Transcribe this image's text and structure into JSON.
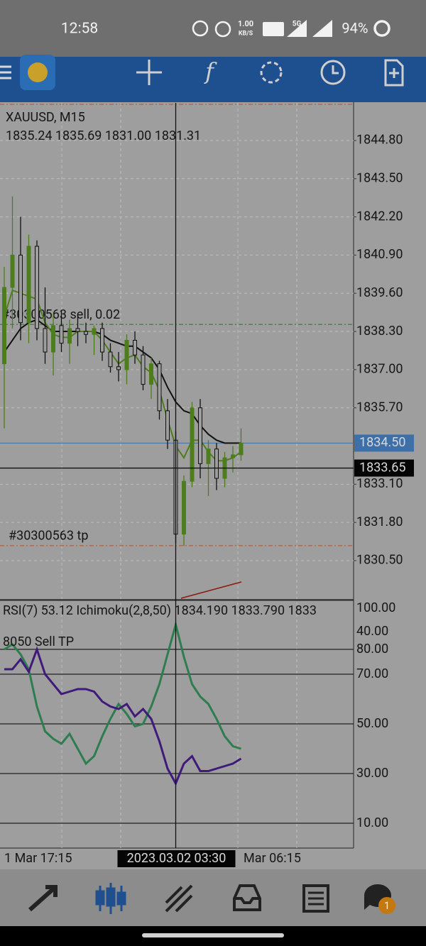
{
  "status_bar": {
    "time": "12:58",
    "net_speed": "1.00",
    "net_unit": "KB/S",
    "network": "5G",
    "battery": "94%"
  },
  "chart_data": {
    "type": "candlestick",
    "symbol": "XAUUSD, M15",
    "ohlc_info": "1835.24 1835.69 1831.00 1831.31",
    "candles": [
      [
        1837.2,
        1840.5,
        1835.0,
        1839.8
      ],
      [
        1839.8,
        1842.9,
        1838.4,
        1840.9
      ],
      [
        1840.9,
        1842.2,
        1838.0,
        1838.6
      ],
      [
        1838.6,
        1841.6,
        1837.9,
        1841.2
      ],
      [
        1841.2,
        1841.4,
        1838.0,
        1838.4
      ],
      [
        1838.4,
        1839.8,
        1837.2,
        1837.6
      ],
      [
        1837.6,
        1838.9,
        1836.8,
        1838.5
      ],
      [
        1838.5,
        1839.0,
        1837.6,
        1837.9
      ],
      [
        1837.9,
        1838.7,
        1837.2,
        1838.4
      ],
      [
        1838.4,
        1838.8,
        1837.8,
        1838.3
      ],
      [
        1838.3,
        1838.6,
        1837.9,
        1838.2
      ],
      [
        1838.2,
        1838.5,
        1837.5,
        1838.4
      ],
      [
        1838.4,
        1838.6,
        1837.3,
        1837.6
      ],
      [
        1837.6,
        1837.9,
        1836.9,
        1837.1
      ],
      [
        1837.1,
        1837.6,
        1836.6,
        1837.0
      ],
      [
        1837.0,
        1838.2,
        1836.5,
        1838.0
      ],
      [
        1838.0,
        1838.3,
        1837.2,
        1837.5
      ],
      [
        1837.5,
        1837.8,
        1836.3,
        1836.5
      ],
      [
        1836.5,
        1837.4,
        1836.0,
        1837.2
      ],
      [
        1837.2,
        1837.3,
        1835.3,
        1835.6
      ],
      [
        1835.6,
        1836.0,
        1834.3,
        1834.6
      ],
      [
        1834.6,
        1834.9,
        1831.1,
        1831.4
      ],
      [
        1831.4,
        1833.4,
        1831.0,
        1833.2
      ],
      [
        1833.2,
        1835.9,
        1833.0,
        1835.7
      ],
      [
        1835.7,
        1836.0,
        1833.3,
        1833.8
      ],
      [
        1833.8,
        1834.6,
        1832.7,
        1834.3
      ],
      [
        1834.3,
        1834.5,
        1832.9,
        1833.3
      ],
      [
        1833.3,
        1834.2,
        1833.0,
        1834.0
      ],
      [
        1834.0,
        1834.4,
        1833.5,
        1834.1
      ],
      [
        1834.1,
        1835.0,
        1833.9,
        1834.5
      ]
    ],
    "bull_color": "#4e7d1e",
    "bear_color": "#111111",
    "lines": [
      {
        "color": "#111111",
        "values": [
          1837.6,
          1838.0,
          1838.4,
          1838.6,
          1838.7,
          1838.5,
          1838.3,
          1838.3,
          1838.3,
          1838.3,
          1838.3,
          1838.3,
          1838.2,
          1838.0,
          1837.9,
          1837.8,
          1837.8,
          1837.6,
          1837.4,
          1837.0,
          1836.4,
          1835.9,
          1835.6,
          1835.5,
          1835.1,
          1834.8,
          1834.6,
          1834.5,
          1834.5,
          1834.5
        ]
      },
      {
        "color": "#4e7d1e",
        "values": [
          1838.8,
          1839.7,
          1839.6,
          1839.5,
          1839.4,
          1838.6,
          1838.2,
          1838.1,
          1838.1,
          1838.3,
          1838.3,
          1838.3,
          1838.0,
          1837.6,
          1837.2,
          1837.4,
          1837.5,
          1837.1,
          1836.9,
          1836.3,
          1835.3,
          1834.4,
          1834.0,
          1834.6,
          1834.6,
          1834.2,
          1833.9,
          1833.9,
          1834.0,
          1834.2
        ]
      }
    ],
    "ylim": [
      1829.17,
      1846.08
    ],
    "yticks": [
      {
        "value": 1844.8,
        "label": "1844.80"
      },
      {
        "value": 1843.5,
        "label": "1843.50"
      },
      {
        "value": 1842.2,
        "label": "1842.20"
      },
      {
        "value": 1840.9,
        "label": "1840.90"
      },
      {
        "value": 1839.6,
        "label": "1839.60"
      },
      {
        "value": 1838.3,
        "label": "1838.30"
      },
      {
        "value": 1837.0,
        "label": "1837.00"
      },
      {
        "value": 1835.7,
        "label": "1835.70"
      },
      {
        "value": 1833.1,
        "label": "1833.10"
      },
      {
        "value": 1831.8,
        "label": "1831.80"
      },
      {
        "value": 1830.5,
        "label": "1830.50"
      }
    ],
    "grid": true,
    "levels": [
      {
        "value": 1838.54,
        "label": "#30300563 sell, 0.02",
        "color": "#2f6a2f"
      },
      {
        "value": 1831.01,
        "label": "#30300563 tp",
        "color": "#b5502a"
      }
    ],
    "bid": {
      "value": 1834.5,
      "label": "1834.50",
      "color": "#3d6fa8"
    },
    "crosshair": {
      "value": 1833.65,
      "label": "1833.65"
    },
    "xlabels": [
      "1 Mar 17:15",
      "2023.03.02 03:30",
      "Mar 06:15"
    ]
  },
  "rsi": {
    "header": "RSI(7) 53.12 Ichimoku(2,8,50) 1834.190 1833.790 1833",
    "note": "8050 Sell TP",
    "overlay_label": "40.00",
    "series": [
      {
        "color": "#2e7d4f",
        "values": [
          80,
          82,
          78,
          72,
          57,
          47,
          44,
          42,
          46,
          40,
          34,
          37,
          45,
          52,
          58,
          54,
          49,
          50,
          57,
          66,
          78,
          90,
          77,
          66,
          61,
          58,
          52,
          45,
          41,
          40
        ]
      },
      {
        "color": "#3f1a7a",
        "values": [
          72,
          72,
          76,
          71,
          80,
          70,
          66,
          62,
          63,
          64,
          64,
          63,
          59,
          57,
          56,
          58,
          53,
          56,
          52,
          43,
          32,
          26,
          34,
          37,
          31,
          31,
          32,
          33,
          34,
          36
        ]
      }
    ],
    "ylim": [
      0,
      100
    ],
    "yticks": [
      {
        "value": 100,
        "label": "100.00"
      },
      {
        "value": 80,
        "label": "80.00"
      },
      {
        "value": 70,
        "label": "70.00"
      },
      {
        "value": 50,
        "label": "50.00"
      },
      {
        "value": 30,
        "label": "30.00"
      },
      {
        "value": 10,
        "label": "10.00"
      }
    ]
  },
  "bottom_nav": {
    "badge": "1"
  }
}
